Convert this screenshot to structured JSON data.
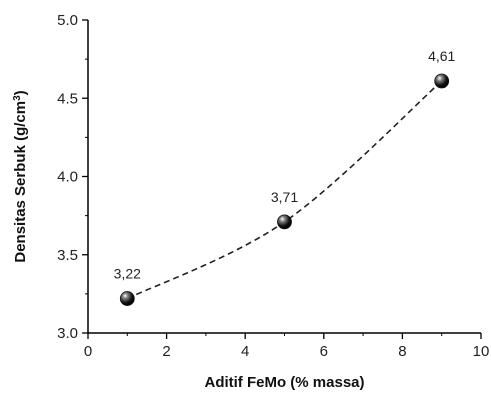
{
  "chart_data": {
    "type": "scatter",
    "title": "",
    "xlabel": "Aditif FeMo (% massa)",
    "ylabel_main": "Densitas Serbuk (g/cm",
    "ylabel_sup": "3",
    "ylabel_close": ")",
    "xlim": [
      0,
      10
    ],
    "ylim": [
      3.0,
      5.0
    ],
    "x_ticks": [
      0,
      2,
      4,
      6,
      8,
      10
    ],
    "y_ticks": [
      3.0,
      3.5,
      4.0,
      4.5,
      5.0
    ],
    "x_tick_labels": [
      "0",
      "2",
      "4",
      "6",
      "8",
      "10"
    ],
    "y_tick_labels": [
      "3.0",
      "3.5",
      "4.0",
      "4.5",
      "5.0"
    ],
    "grid": false,
    "legend": "none",
    "trend_line": "dashed",
    "series": [
      {
        "x": [
          1,
          5,
          9
        ],
        "y": [
          3.22,
          3.71,
          4.61
        ],
        "labels": [
          "3,22",
          "3,71",
          "4,61"
        ]
      }
    ],
    "colors": {
      "marker": "#111111",
      "line": "#222222",
      "axis": "#000000"
    }
  }
}
